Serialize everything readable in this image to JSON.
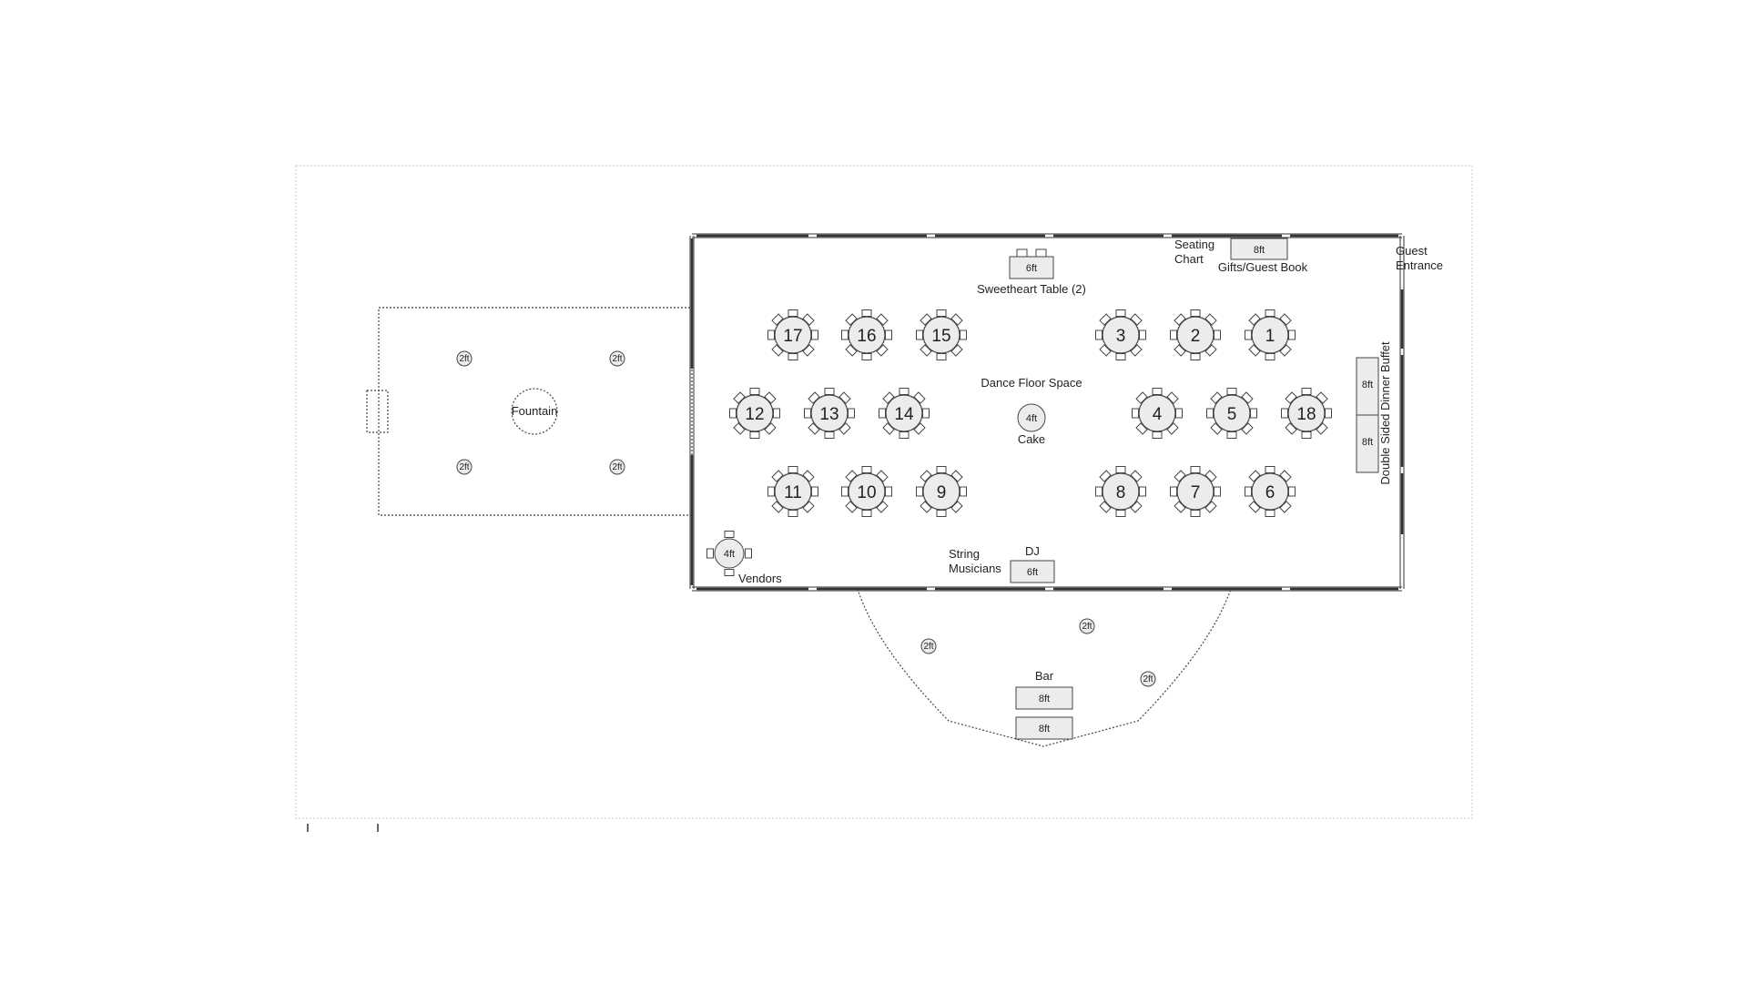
{
  "plan": {
    "seating_chart": [
      "Seating",
      "Chart"
    ],
    "gifts_table": {
      "size": "8ft",
      "label": "Gifts/Guest Book"
    },
    "guest_entrance": [
      "Guest",
      "Entrance"
    ],
    "sweetheart": {
      "size": "6ft",
      "label": "Sweetheart Table (2)"
    },
    "dance_floor": "Dance Floor Space",
    "cake": {
      "size": "4ft",
      "label": "Cake"
    },
    "dj": {
      "label": "DJ",
      "size": "6ft"
    },
    "string_musicians": [
      "String",
      "Musicians"
    ],
    "vendors": {
      "size": "4ft",
      "label": "Vendors"
    },
    "buffet": {
      "label": "Double Sided Dinner Buffet",
      "tables": [
        "8ft",
        "8ft"
      ]
    },
    "fountain": "Fountain",
    "bar": {
      "label": "Bar",
      "tables": [
        "8ft",
        "8ft"
      ]
    },
    "cocktail_size": "2ft",
    "tables": [
      "17",
      "16",
      "15",
      "3",
      "2",
      "1",
      "12",
      "13",
      "14",
      "4",
      "5",
      "18",
      "11",
      "10",
      "9",
      "8",
      "7",
      "6"
    ]
  }
}
